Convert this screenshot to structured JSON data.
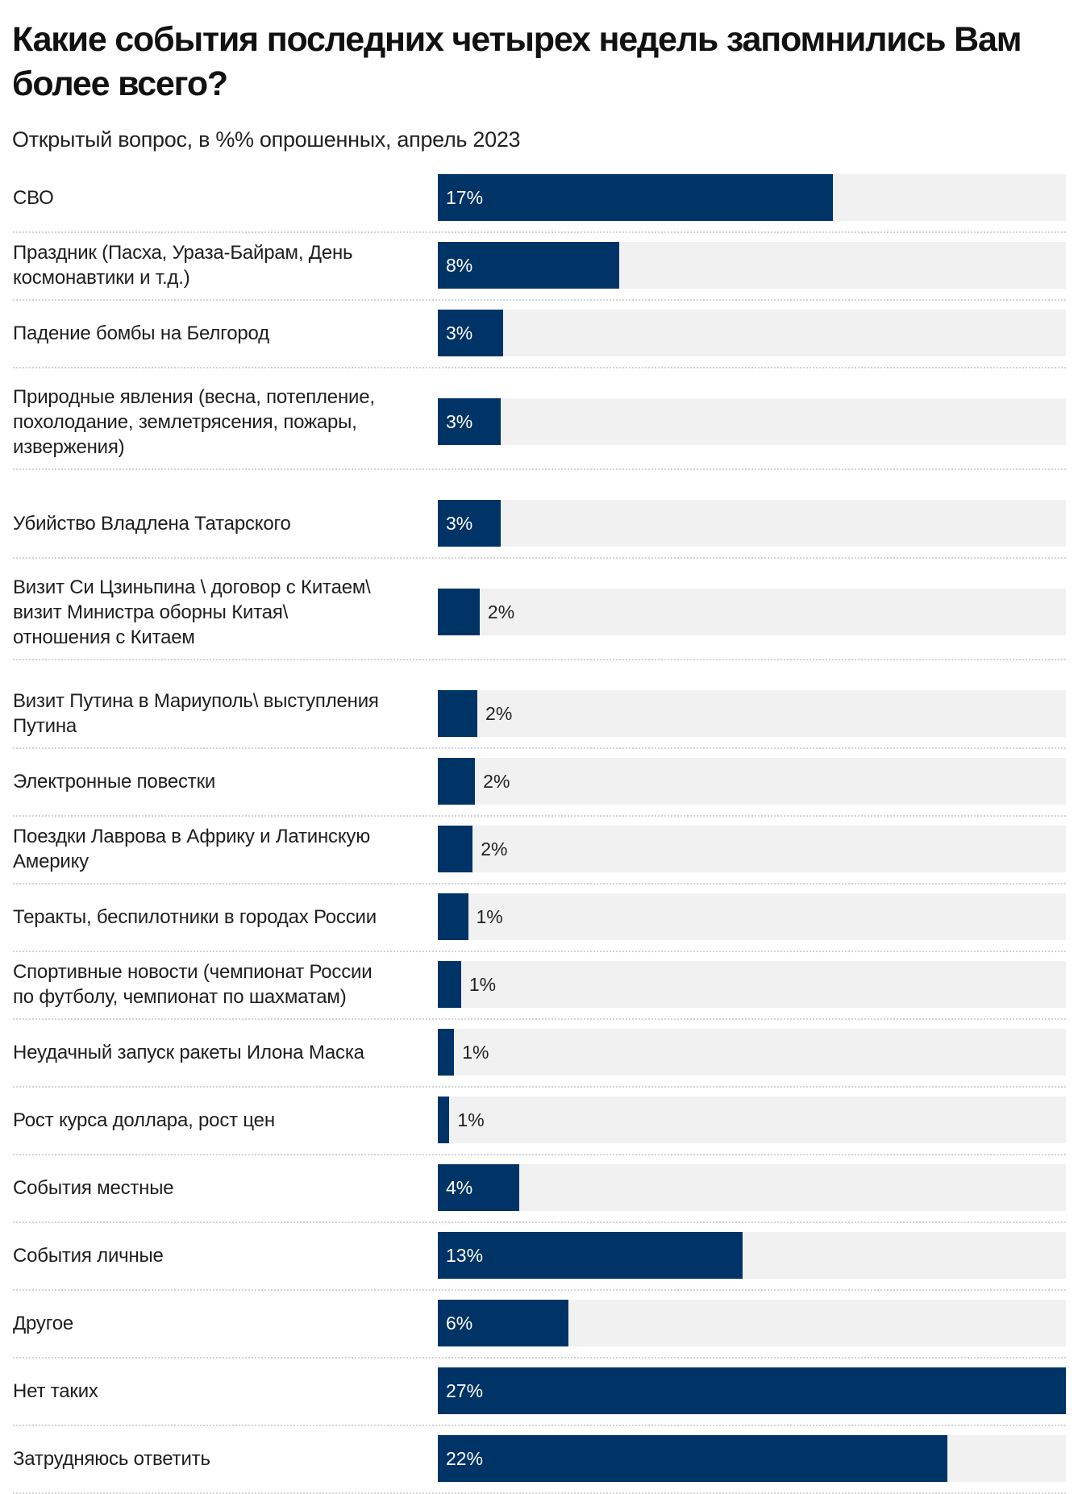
{
  "header": {
    "title": "Какие события последних четырех недель запомнились Вам более всего?",
    "subtitle": "Открытый вопрос, в %% опрошенных, апрель 2023"
  },
  "colors": {
    "bar": "#003366",
    "track": "#f1f1f1",
    "label_inside": "#ffffff",
    "label_outside": "#222222"
  },
  "chart_data": {
    "type": "bar",
    "orientation": "horizontal",
    "title": "Какие события последних четырех недель запомнились Вам более всего?",
    "subtitle": "Открытый вопрос, в %% опрошенных, апрель 2023",
    "xlabel": "",
    "ylabel": "",
    "unit": "%",
    "xlim": [
      0,
      27
    ],
    "grid": false,
    "legend": "none",
    "categories": [
      "СВО",
      "Праздник (Пасха, Ураза-Байрам, День космонавтики и т.д.)",
      "Падение бомбы на Белгород",
      "Природные явления (весна, потепление, похолодание, землетрясения, пожары, извержения)",
      "Убийство Владлена Татарского",
      "Визит Си Цзиньпина \\ договор с Китаем\\ визит Министра оборны Китая\\ отношения с Китаем",
      "Визит Путина в Мариуполь\\ выступления Путина",
      "Электронные повестки",
      "Поездки Лаврова в Африку и Латинскую Америку",
      "Теракты, беспилотники в городах России",
      "Спортивные новости (чемпионат России по футболу, чемпионат по шахматам)",
      "Неудачный запуск ракеты Илона Маска",
      "Рост курса доллара, рост цен",
      "События местные",
      "События личные",
      "Другое",
      "Нет таких",
      "Затрудняюсь ответить"
    ],
    "label_lines": [
      [
        "СВО"
      ],
      [
        "Праздник (Пасха, Ураза-Байрам, День",
        "космонавтики и т.д.)"
      ],
      [
        "Падение бомбы на Белгород"
      ],
      [
        "Природные явления (весна, потепление,",
        "похолодание, землетрясения, пожары,",
        "извержения)"
      ],
      [
        "Убийство Владлена Татарского"
      ],
      [
        "Визит Си Цзиньпина \\ договор с Китаем\\",
        "визит Министра оборны Китая\\",
        "отношения с Китаем"
      ],
      [
        "Визит Путина в Мариуполь\\ выступления",
        "Путина"
      ],
      [
        "Электронные повестки"
      ],
      [
        "Поездки Лаврова в Африку и Латинскую",
        "Америку"
      ],
      [
        "Теракты, беспилотники в городах России"
      ],
      [
        "Спортивные новости (чемпионат России",
        "по футболу, чемпионат по шахматам)"
      ],
      [
        "Неудачный запуск ракеты Илона Маска"
      ],
      [
        "Рост курса доллара, рост цен"
      ],
      [
        "События местные"
      ],
      [
        "События личные"
      ],
      [
        "Другое"
      ],
      [
        "Нет таких"
      ],
      [
        "Затрудняюсь ответить"
      ]
    ],
    "values": [
      17.0,
      7.8,
      2.8,
      2.7,
      2.7,
      1.8,
      1.7,
      1.6,
      1.5,
      1.3,
      1.0,
      0.7,
      0.5,
      3.5,
      13.1,
      5.6,
      27.0,
      21.9
    ],
    "data_labels": [
      "17%",
      "8%",
      "3%",
      "3%",
      "3%",
      "2%",
      "2%",
      "2%",
      "2%",
      "1%",
      "1%",
      "1%",
      "1%",
      "4%",
      "13%",
      "6%",
      "27%",
      "22%"
    ],
    "label_position": [
      "inside",
      "inside",
      "inside",
      "inside",
      "inside",
      "outside",
      "outside",
      "outside",
      "outside",
      "outside",
      "outside",
      "outside",
      "outside",
      "inside",
      "inside",
      "inside",
      "inside",
      "inside"
    ]
  }
}
